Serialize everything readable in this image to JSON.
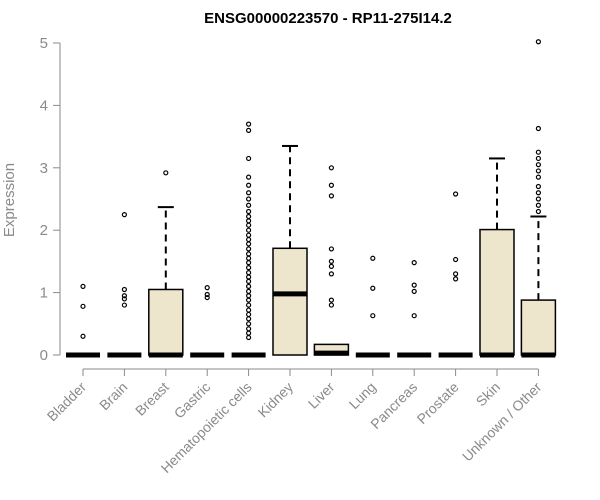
{
  "chart_data": {
    "type": "box",
    "title": "ENSG00000223570 - RP11-275I14.2",
    "xlabel": "",
    "ylabel": "Expression",
    "ylim": [
      0,
      5
    ],
    "yticks": [
      0,
      1,
      2,
      3,
      4,
      5
    ],
    "box_fill": "#ede6cc",
    "axis_color": "#8a8a8a",
    "categories": [
      "Bladder",
      "Brain",
      "Breast",
      "Gastric",
      "Hematopoietic cells",
      "Kidney",
      "Liver",
      "Lung",
      "Pancreas",
      "Prostate",
      "Skin",
      "Unknown / Other"
    ],
    "boxes": [
      {
        "q1": 0,
        "median": 0,
        "q3": 0,
        "whisker_low": 0,
        "whisker_high": 0,
        "outliers": [
          0.3,
          0.78,
          1.1
        ]
      },
      {
        "q1": 0,
        "median": 0,
        "q3": 0,
        "whisker_low": 0,
        "whisker_high": 0,
        "outliers": [
          0.8,
          0.9,
          0.95,
          1.05,
          2.25
        ]
      },
      {
        "q1": 0,
        "median": 0,
        "q3": 1.05,
        "whisker_low": 0,
        "whisker_high": 2.37,
        "outliers": [
          2.92
        ]
      },
      {
        "q1": 0,
        "median": 0,
        "q3": 0,
        "whisker_low": 0,
        "whisker_high": 0,
        "outliers": [
          0.92,
          0.97,
          1.08
        ]
      },
      {
        "q1": 0,
        "median": 0,
        "q3": 0,
        "whisker_low": 0,
        "whisker_high": 0,
        "outliers": [
          0.28,
          0.35,
          0.42,
          0.5,
          0.58,
          0.65,
          0.72,
          0.8,
          0.88,
          0.95,
          1.02,
          1.1,
          1.18,
          1.25,
          1.32,
          1.4,
          1.48,
          1.55,
          1.62,
          1.7,
          1.78,
          1.85,
          1.92,
          2.0,
          2.08,
          2.15,
          2.22,
          2.3,
          2.4,
          2.5,
          2.6,
          2.72,
          2.85,
          3.15,
          3.6,
          3.7
        ]
      },
      {
        "q1": 0,
        "median": 0.98,
        "q3": 1.71,
        "whisker_low": 0,
        "whisker_high": 3.35,
        "outliers": []
      },
      {
        "q1": 0,
        "median": 0.03,
        "q3": 0.17,
        "whisker_low": 0,
        "whisker_high": 0.17,
        "outliers": [
          0.8,
          0.88,
          1.3,
          1.42,
          1.5,
          1.7,
          2.55,
          2.72,
          3.0
        ]
      },
      {
        "q1": 0,
        "median": 0,
        "q3": 0,
        "whisker_low": 0,
        "whisker_high": 0,
        "outliers": [
          0.63,
          1.07,
          1.55
        ]
      },
      {
        "q1": 0,
        "median": 0,
        "q3": 0,
        "whisker_low": 0,
        "whisker_high": 0,
        "outliers": [
          0.63,
          1.02,
          1.12,
          1.48
        ]
      },
      {
        "q1": 0,
        "median": 0,
        "q3": 0,
        "whisker_low": 0,
        "whisker_high": 0,
        "outliers": [
          1.22,
          1.3,
          1.53,
          2.58
        ]
      },
      {
        "q1": 0,
        "median": 0,
        "q3": 2.01,
        "whisker_low": 0,
        "whisker_high": 3.15,
        "outliers": []
      },
      {
        "q1": 0,
        "median": 0,
        "q3": 0.88,
        "whisker_low": 0,
        "whisker_high": 2.22,
        "outliers": [
          2.3,
          2.4,
          2.5,
          2.6,
          2.7,
          2.85,
          2.95,
          3.05,
          3.15,
          3.25,
          3.63,
          5.02
        ]
      }
    ]
  }
}
